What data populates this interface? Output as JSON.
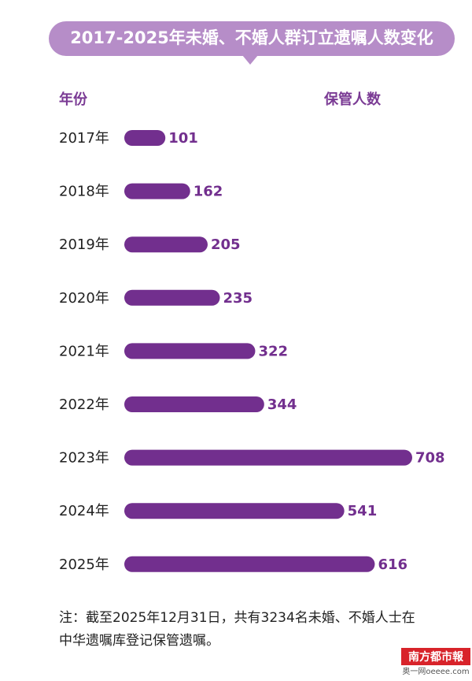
{
  "chart_data": {
    "type": "bar",
    "orientation": "horizontal",
    "title": "2017-2025年未婚、不婚人群订立遗嘱人数变化",
    "category_header": "年份",
    "value_header": "保管人数",
    "categories": [
      "2017年",
      "2018年",
      "2019年",
      "2020年",
      "2021年",
      "2022年",
      "2023年",
      "2024年",
      "2025年"
    ],
    "values": [
      101,
      162,
      205,
      235,
      322,
      344,
      708,
      541,
      616
    ],
    "color": "#722f8e",
    "note": [
      "注：截至2025年12月31日，共有3234名未婚、不婚人士在",
      "中华遗嘱库登记保管遗嘱。"
    ],
    "source": [
      "南方都市報",
      "奥一网oeeee.com"
    ]
  }
}
